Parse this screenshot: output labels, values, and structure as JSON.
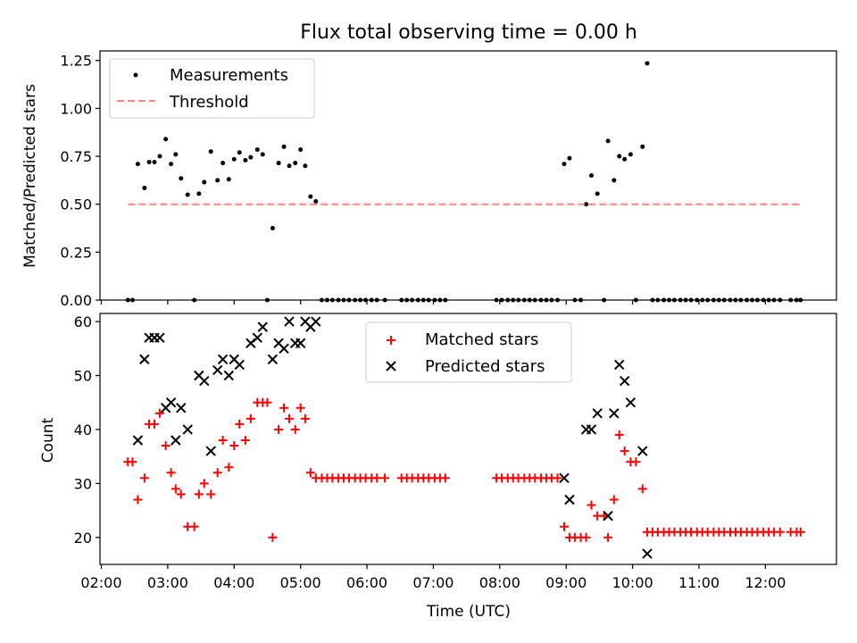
{
  "chart_data": [
    {
      "type": "scatter",
      "title": "Flux total observing time = 0.00 h",
      "xlabel": "",
      "ylabel": "Matched/Predicted stars",
      "xlim": [
        1.98,
        13.07
      ],
      "ylim": [
        0.0,
        1.3
      ],
      "yticks": [
        0.0,
        0.25,
        0.5,
        0.75,
        1.0,
        1.25
      ],
      "ytick_labels": [
        "0.00",
        "0.25",
        "0.50",
        "0.75",
        "1.00",
        "1.25"
      ],
      "grid": false,
      "legend": {
        "placement": "upper-left"
      },
      "series": [
        {
          "name": "Measurements",
          "style": "dot",
          "color": "#000000",
          "points": [
            [
              2.4,
              0.0
            ],
            [
              2.47,
              0.0
            ],
            [
              2.55,
              0.71
            ],
            [
              2.65,
              0.585
            ],
            [
              2.72,
              0.72
            ],
            [
              2.8,
              0.72
            ],
            [
              2.88,
              0.75
            ],
            [
              2.97,
              0.84
            ],
            [
              3.05,
              0.71
            ],
            [
              3.12,
              0.76
            ],
            [
              3.2,
              0.635
            ],
            [
              3.3,
              0.55
            ],
            [
              3.4,
              0.0
            ],
            [
              3.47,
              0.555
            ],
            [
              3.55,
              0.615
            ],
            [
              3.65,
              0.775
            ],
            [
              3.75,
              0.625
            ],
            [
              3.83,
              0.715
            ],
            [
              3.92,
              0.63
            ],
            [
              4.0,
              0.735
            ],
            [
              4.08,
              0.77
            ],
            [
              4.17,
              0.73
            ],
            [
              4.25,
              0.745
            ],
            [
              4.35,
              0.785
            ],
            [
              4.43,
              0.76
            ],
            [
              4.5,
              0.0
            ],
            [
              4.58,
              0.375
            ],
            [
              4.67,
              0.715
            ],
            [
              4.75,
              0.8
            ],
            [
              4.83,
              0.7
            ],
            [
              4.92,
              0.715
            ],
            [
              5.0,
              0.785
            ],
            [
              5.07,
              0.7
            ],
            [
              5.15,
              0.54
            ],
            [
              5.23,
              0.515
            ],
            [
              5.32,
              0.0
            ],
            [
              5.4,
              0.0
            ],
            [
              5.48,
              0.0
            ],
            [
              5.57,
              0.0
            ],
            [
              5.65,
              0.0
            ],
            [
              5.73,
              0.0
            ],
            [
              5.82,
              0.0
            ],
            [
              5.9,
              0.0
            ],
            [
              5.98,
              0.0
            ],
            [
              6.07,
              0.0
            ],
            [
              6.15,
              0.0
            ],
            [
              6.27,
              0.0
            ],
            [
              6.52,
              0.0
            ],
            [
              6.6,
              0.0
            ],
            [
              6.68,
              0.0
            ],
            [
              6.77,
              0.0
            ],
            [
              6.85,
              0.0
            ],
            [
              6.93,
              0.0
            ],
            [
              7.02,
              0.0
            ],
            [
              7.1,
              0.0
            ],
            [
              7.18,
              0.0
            ],
            [
              7.95,
              0.0
            ],
            [
              8.03,
              0.0
            ],
            [
              8.12,
              0.0
            ],
            [
              8.2,
              0.0
            ],
            [
              8.28,
              0.0
            ],
            [
              8.37,
              0.0
            ],
            [
              8.45,
              0.0
            ],
            [
              8.53,
              0.0
            ],
            [
              8.62,
              0.0
            ],
            [
              8.7,
              0.0
            ],
            [
              8.78,
              0.0
            ],
            [
              8.87,
              0.0
            ],
            [
              8.97,
              0.71
            ],
            [
              9.05,
              0.74
            ],
            [
              9.13,
              0.0
            ],
            [
              9.22,
              0.0
            ],
            [
              9.3,
              0.5
            ],
            [
              9.38,
              0.65
            ],
            [
              9.47,
              0.555
            ],
            [
              9.57,
              0.0
            ],
            [
              9.63,
              0.83
            ],
            [
              9.72,
              0.625
            ],
            [
              9.8,
              0.75
            ],
            [
              9.88,
              0.735
            ],
            [
              9.97,
              0.76
            ],
            [
              10.05,
              0.0
            ],
            [
              10.15,
              0.8
            ],
            [
              10.22,
              1.235
            ],
            [
              10.3,
              0.0
            ],
            [
              10.38,
              0.0
            ],
            [
              10.47,
              0.0
            ],
            [
              10.55,
              0.0
            ],
            [
              10.63,
              0.0
            ],
            [
              10.72,
              0.0
            ],
            [
              10.8,
              0.0
            ],
            [
              10.88,
              0.0
            ],
            [
              10.97,
              0.0
            ],
            [
              11.05,
              0.0
            ],
            [
              11.13,
              0.0
            ],
            [
              11.22,
              0.0
            ],
            [
              11.3,
              0.0
            ],
            [
              11.38,
              0.0
            ],
            [
              11.47,
              0.0
            ],
            [
              11.55,
              0.0
            ],
            [
              11.63,
              0.0
            ],
            [
              11.72,
              0.0
            ],
            [
              11.8,
              0.0
            ],
            [
              11.88,
              0.0
            ],
            [
              11.97,
              0.0
            ],
            [
              12.05,
              0.0
            ],
            [
              12.13,
              0.0
            ],
            [
              12.22,
              0.0
            ],
            [
              12.38,
              0.0
            ],
            [
              12.47,
              0.0
            ],
            [
              12.53,
              0.0
            ]
          ]
        },
        {
          "name": "Threshold",
          "style": "dashed-line",
          "color": "#ff8080",
          "points": [
            [
              2.4,
              0.5
            ],
            [
              12.53,
              0.5
            ]
          ]
        }
      ]
    },
    {
      "type": "scatter",
      "title": "",
      "xlabel": "Time (UTC)",
      "ylabel": "Count",
      "xlim": [
        1.98,
        13.07
      ],
      "ylim": [
        15,
        61.5
      ],
      "yticks": [
        20,
        30,
        40,
        50,
        60
      ],
      "ytick_labels": [
        "20",
        "30",
        "40",
        "50",
        "60"
      ],
      "xticks": [
        2,
        3,
        4,
        5,
        6,
        7,
        8,
        9,
        10,
        11,
        12
      ],
      "xtick_labels": [
        "02:00",
        "03:00",
        "04:00",
        "05:00",
        "06:00",
        "07:00",
        "08:00",
        "09:00",
        "10:00",
        "11:00",
        "12:00"
      ],
      "grid": false,
      "legend": {
        "placement": "upper-center"
      },
      "series": [
        {
          "name": "Matched stars",
          "style": "plus",
          "color": "#ff0000",
          "points": [
            [
              2.4,
              34
            ],
            [
              2.47,
              34
            ],
            [
              2.55,
              27
            ],
            [
              2.65,
              31
            ],
            [
              2.72,
              41
            ],
            [
              2.8,
              41
            ],
            [
              2.88,
              43
            ],
            [
              2.97,
              37
            ],
            [
              3.05,
              32
            ],
            [
              3.12,
              29
            ],
            [
              3.2,
              28
            ],
            [
              3.3,
              22
            ],
            [
              3.4,
              22
            ],
            [
              3.47,
              28
            ],
            [
              3.55,
              30
            ],
            [
              3.65,
              28
            ],
            [
              3.75,
              32
            ],
            [
              3.83,
              38
            ],
            [
              3.92,
              33
            ],
            [
              4.0,
              37
            ],
            [
              4.08,
              41
            ],
            [
              4.17,
              38
            ],
            [
              4.25,
              42
            ],
            [
              4.35,
              45
            ],
            [
              4.43,
              45
            ],
            [
              4.5,
              45
            ],
            [
              4.58,
              20
            ],
            [
              4.67,
              40
            ],
            [
              4.75,
              44
            ],
            [
              4.83,
              42
            ],
            [
              4.92,
              40
            ],
            [
              5.0,
              44
            ],
            [
              5.07,
              42
            ],
            [
              5.15,
              32
            ],
            [
              5.23,
              31
            ],
            [
              5.32,
              31
            ],
            [
              5.4,
              31
            ],
            [
              5.48,
              31
            ],
            [
              5.57,
              31
            ],
            [
              5.65,
              31
            ],
            [
              5.73,
              31
            ],
            [
              5.82,
              31
            ],
            [
              5.9,
              31
            ],
            [
              5.98,
              31
            ],
            [
              6.07,
              31
            ],
            [
              6.15,
              31
            ],
            [
              6.27,
              31
            ],
            [
              6.52,
              31
            ],
            [
              6.6,
              31
            ],
            [
              6.68,
              31
            ],
            [
              6.77,
              31
            ],
            [
              6.85,
              31
            ],
            [
              6.93,
              31
            ],
            [
              7.02,
              31
            ],
            [
              7.1,
              31
            ],
            [
              7.18,
              31
            ],
            [
              7.95,
              31
            ],
            [
              8.03,
              31
            ],
            [
              8.12,
              31
            ],
            [
              8.2,
              31
            ],
            [
              8.28,
              31
            ],
            [
              8.37,
              31
            ],
            [
              8.45,
              31
            ],
            [
              8.53,
              31
            ],
            [
              8.62,
              31
            ],
            [
              8.7,
              31
            ],
            [
              8.78,
              31
            ],
            [
              8.87,
              31
            ],
            [
              8.97,
              22
            ],
            [
              9.05,
              20
            ],
            [
              9.13,
              20
            ],
            [
              9.22,
              20
            ],
            [
              9.3,
              20
            ],
            [
              9.38,
              26
            ],
            [
              9.47,
              24
            ],
            [
              9.57,
              24
            ],
            [
              9.63,
              20
            ],
            [
              9.72,
              27
            ],
            [
              9.8,
              39
            ],
            [
              9.88,
              36
            ],
            [
              9.97,
              34
            ],
            [
              10.05,
              34
            ],
            [
              10.15,
              29
            ],
            [
              10.22,
              21
            ],
            [
              10.3,
              21
            ],
            [
              10.38,
              21
            ],
            [
              10.47,
              21
            ],
            [
              10.55,
              21
            ],
            [
              10.63,
              21
            ],
            [
              10.72,
              21
            ],
            [
              10.8,
              21
            ],
            [
              10.88,
              21
            ],
            [
              10.97,
              21
            ],
            [
              11.05,
              21
            ],
            [
              11.13,
              21
            ],
            [
              11.22,
              21
            ],
            [
              11.3,
              21
            ],
            [
              11.38,
              21
            ],
            [
              11.47,
              21
            ],
            [
              11.55,
              21
            ],
            [
              11.63,
              21
            ],
            [
              11.72,
              21
            ],
            [
              11.8,
              21
            ],
            [
              11.88,
              21
            ],
            [
              11.97,
              21
            ],
            [
              12.05,
              21
            ],
            [
              12.13,
              21
            ],
            [
              12.22,
              21
            ],
            [
              12.38,
              21
            ],
            [
              12.47,
              21
            ],
            [
              12.53,
              21
            ]
          ]
        },
        {
          "name": "Predicted stars",
          "style": "x",
          "color": "#000000",
          "points": [
            [
              2.55,
              38
            ],
            [
              2.65,
              53
            ],
            [
              2.72,
              57
            ],
            [
              2.8,
              57
            ],
            [
              2.88,
              57
            ],
            [
              2.97,
              44
            ],
            [
              3.05,
              45
            ],
            [
              3.12,
              38
            ],
            [
              3.2,
              44
            ],
            [
              3.3,
              40
            ],
            [
              3.47,
              50
            ],
            [
              3.55,
              49
            ],
            [
              3.65,
              36
            ],
            [
              3.75,
              51
            ],
            [
              3.83,
              53
            ],
            [
              3.92,
              50
            ],
            [
              4.0,
              53
            ],
            [
              4.08,
              52
            ],
            [
              4.25,
              56
            ],
            [
              4.35,
              57
            ],
            [
              4.43,
              59
            ],
            [
              4.58,
              53
            ],
            [
              4.67,
              56
            ],
            [
              4.75,
              55
            ],
            [
              4.83,
              60
            ],
            [
              4.92,
              56
            ],
            [
              5.0,
              56
            ],
            [
              5.07,
              60
            ],
            [
              5.15,
              59
            ],
            [
              5.23,
              60
            ],
            [
              8.97,
              31
            ],
            [
              9.05,
              27
            ],
            [
              9.3,
              40
            ],
            [
              9.38,
              40
            ],
            [
              9.47,
              43
            ],
            [
              9.63,
              24
            ],
            [
              9.72,
              43
            ],
            [
              9.8,
              52
            ],
            [
              9.88,
              49
            ],
            [
              9.97,
              45
            ],
            [
              10.15,
              36
            ],
            [
              10.22,
              17
            ]
          ]
        }
      ]
    }
  ]
}
